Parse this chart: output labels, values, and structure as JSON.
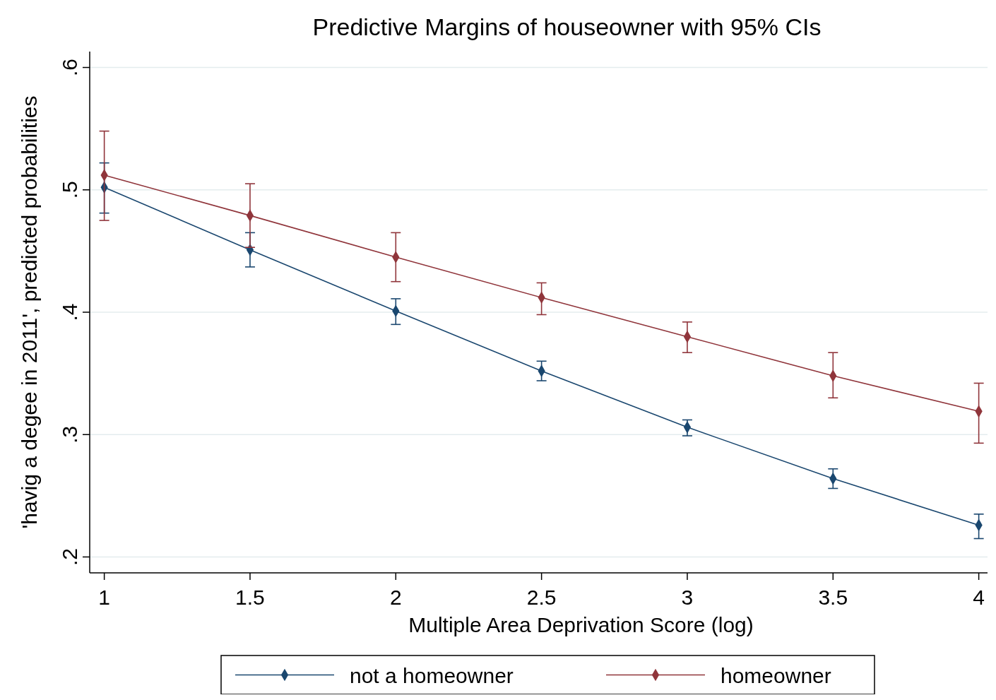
{
  "chart_data": {
    "type": "line",
    "title": "Predictive Margins of houseowner with 95% CIs",
    "xlabel": "Multiple Area Deprivation Score (log)",
    "ylabel": "'havig a degee in 2011', predicted probabilities",
    "x": [
      1,
      1.5,
      2,
      2.5,
      3,
      3.5,
      4
    ],
    "series": [
      {
        "name": "not a homeowner",
        "color": "#1a476f",
        "values": [
          0.502,
          0.451,
          0.401,
          0.352,
          0.306,
          0.264,
          0.226
        ],
        "errors": [
          [
            0.481,
            0.522
          ],
          [
            0.437,
            0.465
          ],
          [
            0.39,
            0.411
          ],
          [
            0.344,
            0.36
          ],
          [
            0.299,
            0.312
          ],
          [
            0.256,
            0.272
          ],
          [
            0.215,
            0.235
          ]
        ]
      },
      {
        "name": "homeowner",
        "color": "#90353b",
        "values": [
          0.512,
          0.479,
          0.445,
          0.412,
          0.38,
          0.348,
          0.319
        ],
        "errors": [
          [
            0.475,
            0.548
          ],
          [
            0.453,
            0.505
          ],
          [
            0.425,
            0.465
          ],
          [
            0.398,
            0.424
          ],
          [
            0.367,
            0.392
          ],
          [
            0.33,
            0.367
          ],
          [
            0.293,
            0.342
          ]
        ]
      }
    ],
    "xlim": [
      0.95,
      4.03
    ],
    "xticks": [
      1,
      1.5,
      2,
      2.5,
      3,
      3.5,
      4
    ],
    "ylim": [
      0.187,
      0.613
    ],
    "yticks": [
      {
        "value": 0.2,
        "label": ".2"
      },
      {
        "value": 0.3,
        "label": ".3"
      },
      {
        "value": 0.4,
        "label": ".4"
      },
      {
        "value": 0.5,
        "label": ".5"
      },
      {
        "value": 0.6,
        "label": ".6"
      }
    ],
    "grid": "y",
    "legend": "bottom",
    "marker": "diamond",
    "line_style": "solid"
  }
}
